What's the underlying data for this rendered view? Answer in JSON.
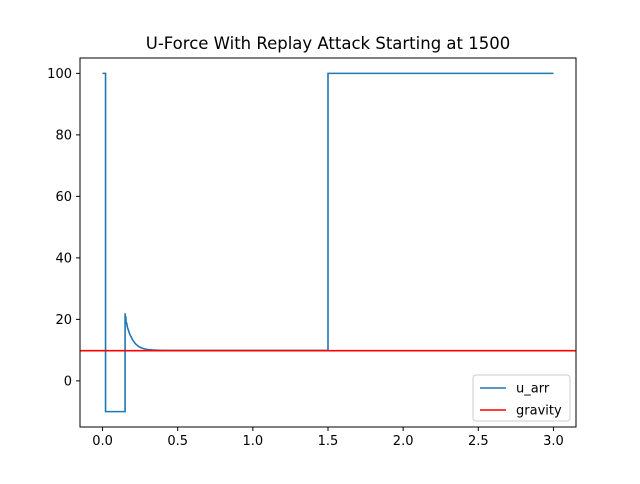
{
  "chart_data": {
    "type": "line",
    "title": "U-Force With Replay Attack Starting at 1500",
    "xlabel": "",
    "ylabel": "",
    "xlim": [
      -0.15,
      3.15
    ],
    "ylim": [
      -15,
      105
    ],
    "x_ticks": [
      0.0,
      0.5,
      1.0,
      1.5,
      2.0,
      2.5,
      3.0
    ],
    "x_tick_labels": [
      "0.0",
      "0.5",
      "1.0",
      "1.5",
      "2.0",
      "2.5",
      "3.0"
    ],
    "y_ticks": [
      0,
      20,
      40,
      60,
      80,
      100
    ],
    "y_tick_labels": [
      "0",
      "20",
      "40",
      "60",
      "80",
      "100"
    ],
    "grid": false,
    "legend_position": "lower-right",
    "series": [
      {
        "name": "u_arr",
        "color": "#1f77b4",
        "x": [
          0.0,
          0.02,
          0.02,
          0.15,
          0.15,
          0.152,
          0.155,
          0.157,
          0.16,
          0.165,
          0.17,
          0.18,
          0.19,
          0.2,
          0.22,
          0.24,
          0.26,
          0.28,
          0.3,
          0.33,
          0.36,
          0.4,
          1.5,
          1.5,
          3.0
        ],
        "y": [
          100,
          100,
          -10,
          -10,
          22,
          19.5,
          21,
          18.5,
          19,
          17.5,
          16.8,
          15.3,
          14.3,
          13.3,
          12.0,
          11.2,
          10.7,
          10.4,
          10.2,
          10.05,
          10.0,
          9.9,
          9.9,
          100,
          100
        ]
      },
      {
        "name": "gravity",
        "color": "#ff0000",
        "type": "hline",
        "y": 9.81
      }
    ]
  }
}
